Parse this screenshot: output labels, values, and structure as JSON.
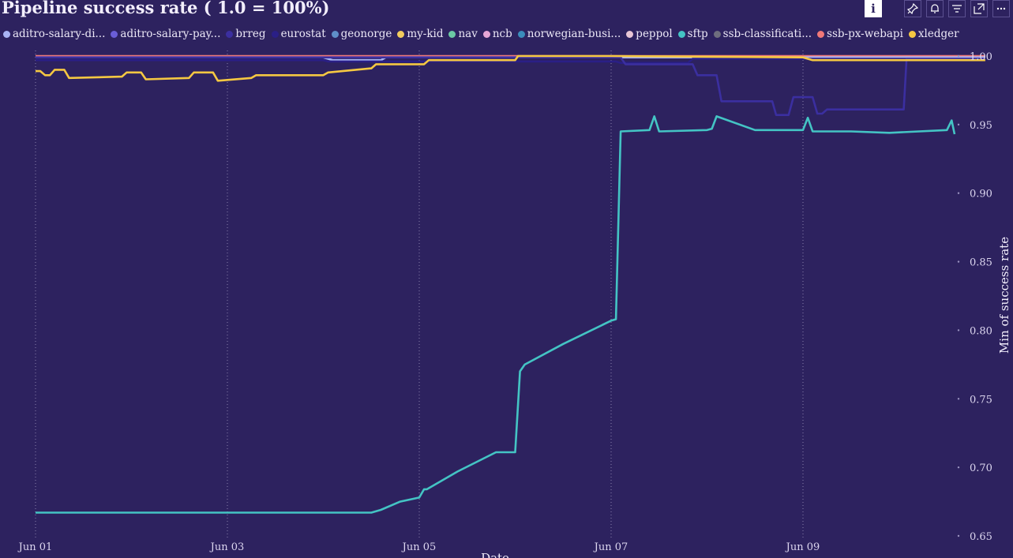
{
  "title": "Pipeline success rate ( 1.0 = 100%)",
  "toolbar": [
    {
      "name": "info-icon",
      "glyph": "i"
    },
    {
      "name": "pin-icon",
      "glyph": "⚲"
    },
    {
      "name": "bell-icon",
      "glyph": "🔔"
    },
    {
      "name": "filter-icon",
      "glyph": "≡"
    },
    {
      "name": "expand-icon",
      "glyph": "⤢"
    },
    {
      "name": "more-icon",
      "glyph": "⋯"
    }
  ],
  "legend": [
    {
      "label": "aditro-salary-di...",
      "color": "#a9b4f5"
    },
    {
      "label": "aditro-salary-pay...",
      "color": "#6a5ed6"
    },
    {
      "label": "brreg",
      "color": "#3b2fa0"
    },
    {
      "label": "eurostat",
      "color": "#2a1f86"
    },
    {
      "label": "geonorge",
      "color": "#5f8fc9"
    },
    {
      "label": "my-kid",
      "color": "#f2cc5e"
    },
    {
      "label": "nav",
      "color": "#6cc9a4"
    },
    {
      "label": "ncb",
      "color": "#e6a6d6"
    },
    {
      "label": "norwegian-busi...",
      "color": "#3b8dbc"
    },
    {
      "label": "peppol",
      "color": "#e8c6d6"
    },
    {
      "label": "sftp",
      "color": "#44c4c4"
    },
    {
      "label": "ssb-classificati...",
      "color": "#6e6e7e"
    },
    {
      "label": "ssb-px-webapi",
      "color": "#f07878"
    },
    {
      "label": "xledger",
      "color": "#f5c842"
    }
  ],
  "chart_data": {
    "type": "line",
    "title": "Pipeline success rate ( 1.0 = 100%)",
    "xlabel": "Date",
    "ylabel": "Min of success rate",
    "xlim": [
      "2023-06-01",
      "2023-06-10.7"
    ],
    "ylim": [
      0.65,
      1.0
    ],
    "x_ticks": [
      {
        "day": 0,
        "label": "Jun 01"
      },
      {
        "day": 2,
        "label": "Jun 03"
      },
      {
        "day": 4,
        "label": "Jun 05"
      },
      {
        "day": 6,
        "label": "Jun 07"
      },
      {
        "day": 8,
        "label": "Jun 09"
      }
    ],
    "y_ticks": [
      0.65,
      0.7,
      0.75,
      0.8,
      0.85,
      0.9,
      0.95,
      1.0
    ],
    "y_tick_labels": [
      "0.65",
      "0.70",
      "0.75",
      "0.80",
      "0.85",
      "0.90",
      "0.95",
      "1.00"
    ],
    "grid": "vertical dotted",
    "y_axis_position": "right",
    "legend_position": "top",
    "series": [
      {
        "name": "ssb-px-webapi",
        "color": "#f07878",
        "x": [
          0,
          9.9
        ],
        "y": [
          1.0,
          1.0
        ]
      },
      {
        "name": "aditro-salary-di...",
        "color": "#a9b4f5",
        "x": [
          0,
          3.0,
          3.1,
          3.6,
          3.65,
          9.9
        ],
        "y": [
          0.999,
          0.999,
          0.997,
          0.997,
          0.999,
          0.999
        ]
      },
      {
        "name": "eurostat",
        "color": "#2a1f86",
        "x": [
          0,
          3.0,
          3.05,
          6.05,
          6.1,
          6.8,
          6.85,
          9.9
        ],
        "y": [
          0.997,
          0.997,
          0.996,
          0.996,
          0.995,
          0.995,
          0.998,
          0.998
        ]
      },
      {
        "name": "brreg",
        "color": "#3b2fa0",
        "x": [
          0,
          6.1,
          6.15,
          6.85,
          6.9,
          7.1,
          7.15,
          7.5,
          7.55,
          7.68,
          7.72,
          7.85,
          7.9,
          8.1,
          8.15,
          8.2,
          8.25,
          9.05,
          9.08,
          9.9
        ],
        "y": [
          0.999,
          0.999,
          0.994,
          0.994,
          0.986,
          0.986,
          0.967,
          0.967,
          0.967,
          0.967,
          0.957,
          0.957,
          0.97,
          0.97,
          0.958,
          0.958,
          0.961,
          0.961,
          0.998,
          0.998
        ]
      },
      {
        "name": "xledger",
        "color": "#f5c842",
        "x": [
          0,
          0.05,
          0.1,
          0.15,
          0.2,
          0.3,
          0.35,
          0.9,
          0.95,
          1.1,
          1.15,
          1.6,
          1.65,
          1.85,
          1.9,
          2.25,
          2.3,
          3.0,
          3.05,
          3.5,
          3.55,
          4.05,
          4.1,
          5.0,
          5.03,
          6.0,
          8.0,
          8.1,
          9.9
        ],
        "y": [
          0.989,
          0.989,
          0.986,
          0.986,
          0.99,
          0.99,
          0.984,
          0.985,
          0.988,
          0.988,
          0.983,
          0.984,
          0.988,
          0.988,
          0.982,
          0.984,
          0.986,
          0.986,
          0.988,
          0.991,
          0.994,
          0.994,
          0.997,
          0.997,
          1.0,
          1.0,
          0.999,
          0.997,
          0.997
        ]
      },
      {
        "name": "sftp",
        "color": "#44c4c4",
        "x": [
          0,
          1.0,
          2.0,
          3.0,
          3.5,
          3.6,
          3.8,
          4.0,
          4.05,
          4.08,
          4.4,
          4.8,
          5.0,
          5.05,
          5.1,
          5.5,
          6.0,
          6.05,
          6.1,
          6.4,
          6.45,
          6.5,
          7.0,
          7.05,
          7.1,
          7.5,
          8.0,
          8.05,
          8.1,
          8.5,
          8.9,
          9.5,
          9.55,
          9.58
        ],
        "y": [
          0.667,
          0.667,
          0.667,
          0.667,
          0.667,
          0.669,
          0.675,
          0.678,
          0.684,
          0.684,
          0.697,
          0.711,
          0.711,
          0.77,
          0.775,
          0.79,
          0.807,
          0.808,
          0.945,
          0.946,
          0.956,
          0.945,
          0.946,
          0.947,
          0.956,
          0.946,
          0.946,
          0.955,
          0.945,
          0.945,
          0.944,
          0.946,
          0.953,
          0.943
        ]
      }
    ]
  }
}
